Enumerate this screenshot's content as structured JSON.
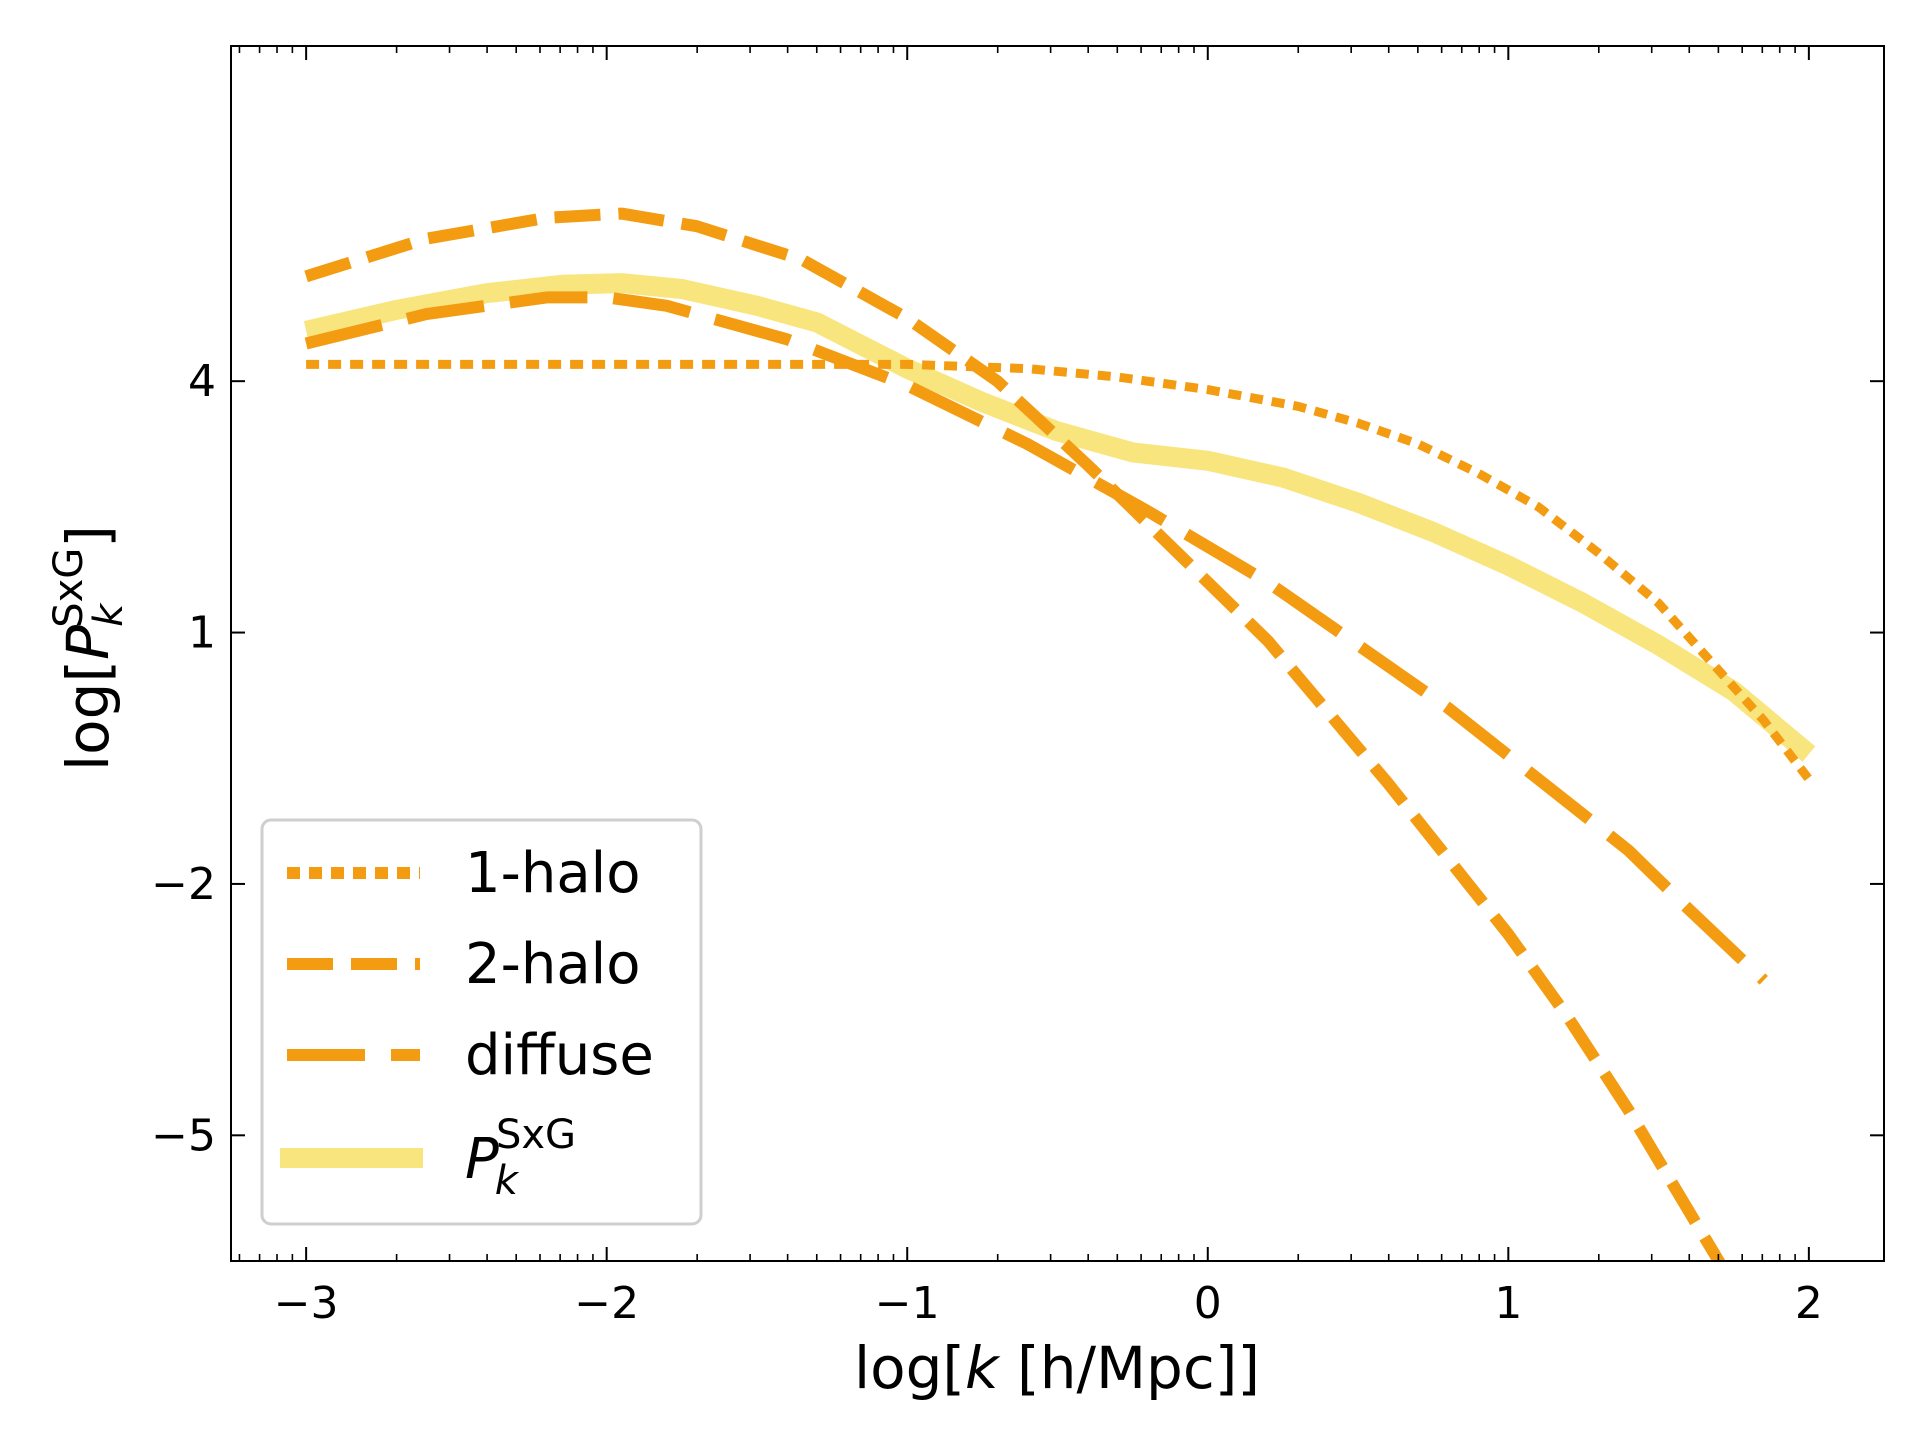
{
  "chart_data": {
    "type": "line",
    "xlabel": {
      "prefix": "log[",
      "var": "k",
      "suffix": " [h/Mpc]]"
    },
    "ylabel": {
      "prefix": "log[",
      "var": "P",
      "sub": "k",
      "sup": "SxG",
      "suffix": "]"
    },
    "xlim": [
      -3.25,
      2.25
    ],
    "ylim": [
      -6.5,
      8.0
    ],
    "x_ticks": [
      -3,
      -2,
      -1,
      0,
      1,
      2
    ],
    "x_tick_labels": [
      "−3",
      "−2",
      "−1",
      "0",
      "1",
      "2"
    ],
    "y_ticks": [
      -5,
      -2,
      1,
      4
    ],
    "y_tick_labels": [
      "−5",
      "−2",
      "1",
      "4"
    ],
    "x_minor_ticks_visible": true,
    "grid": false,
    "legend_position": "lower-left",
    "series": [
      {
        "name": "1-halo",
        "style": "dotted",
        "color": "#f39c12",
        "width": 9,
        "x": [
          -3.0,
          -2.5,
          -2.0,
          -1.5,
          -1.0,
          -0.6,
          -0.3,
          0.0,
          0.3,
          0.5,
          0.7,
          0.9,
          1.1,
          1.3,
          1.5,
          1.7,
          1.85,
          2.0
        ],
        "y": [
          4.2,
          4.2,
          4.2,
          4.2,
          4.2,
          4.15,
          4.05,
          3.9,
          3.7,
          3.5,
          3.25,
          2.9,
          2.5,
          1.95,
          1.35,
          0.55,
          -0.05,
          -0.75
        ]
      },
      {
        "name": "2-halo",
        "style": "dashed",
        "color": "#f39c12",
        "width": 12,
        "x": [
          -3.0,
          -2.6,
          -2.2,
          -1.95,
          -1.7,
          -1.35,
          -1.0,
          -0.7,
          -0.4,
          -0.1,
          0.2,
          0.4,
          0.6,
          0.8,
          1.0,
          1.2,
          1.4,
          1.6,
          1.8,
          2.0
        ],
        "y": [
          5.25,
          5.7,
          5.95,
          6.0,
          5.85,
          5.45,
          4.75,
          4.0,
          3.0,
          1.95,
          0.9,
          0.05,
          -0.8,
          -1.7,
          -2.6,
          -3.6,
          -4.7,
          -5.9,
          -7.1,
          -8.4
        ]
      },
      {
        "name": "diffuse",
        "style": "longdash",
        "color": "#f39c12",
        "width": 12,
        "x": [
          -3.0,
          -2.6,
          -2.2,
          -2.0,
          -1.8,
          -1.4,
          -1.0,
          -0.6,
          -0.2,
          0.2,
          0.5,
          0.8,
          1.1,
          1.4,
          1.6,
          1.85
        ],
        "y": [
          4.45,
          4.8,
          5.0,
          5.0,
          4.9,
          4.5,
          3.95,
          3.25,
          2.45,
          1.6,
          0.85,
          0.1,
          -0.75,
          -1.6,
          -2.3,
          -3.15
        ]
      },
      {
        "name": "P_k^SxG",
        "style": "solid",
        "color": "#f9e57e",
        "width": 20,
        "x": [
          -3.0,
          -2.7,
          -2.4,
          -2.15,
          -1.95,
          -1.75,
          -1.5,
          -1.3,
          -1.0,
          -0.75,
          -0.5,
          -0.25,
          0.0,
          0.25,
          0.5,
          0.75,
          1.0,
          1.25,
          1.5,
          1.75,
          2.0
        ],
        "y": [
          4.6,
          4.85,
          5.05,
          5.15,
          5.17,
          5.1,
          4.9,
          4.7,
          4.15,
          3.75,
          3.4,
          3.15,
          3.05,
          2.85,
          2.55,
          2.2,
          1.8,
          1.35,
          0.85,
          0.3,
          -0.45
        ]
      }
    ],
    "legend_entries": [
      {
        "label": "1-halo"
      },
      {
        "label": "2-halo"
      },
      {
        "label": "diffuse"
      },
      {
        "label_main": "P",
        "label_sub": "k",
        "label_sup": "SxG"
      }
    ]
  }
}
